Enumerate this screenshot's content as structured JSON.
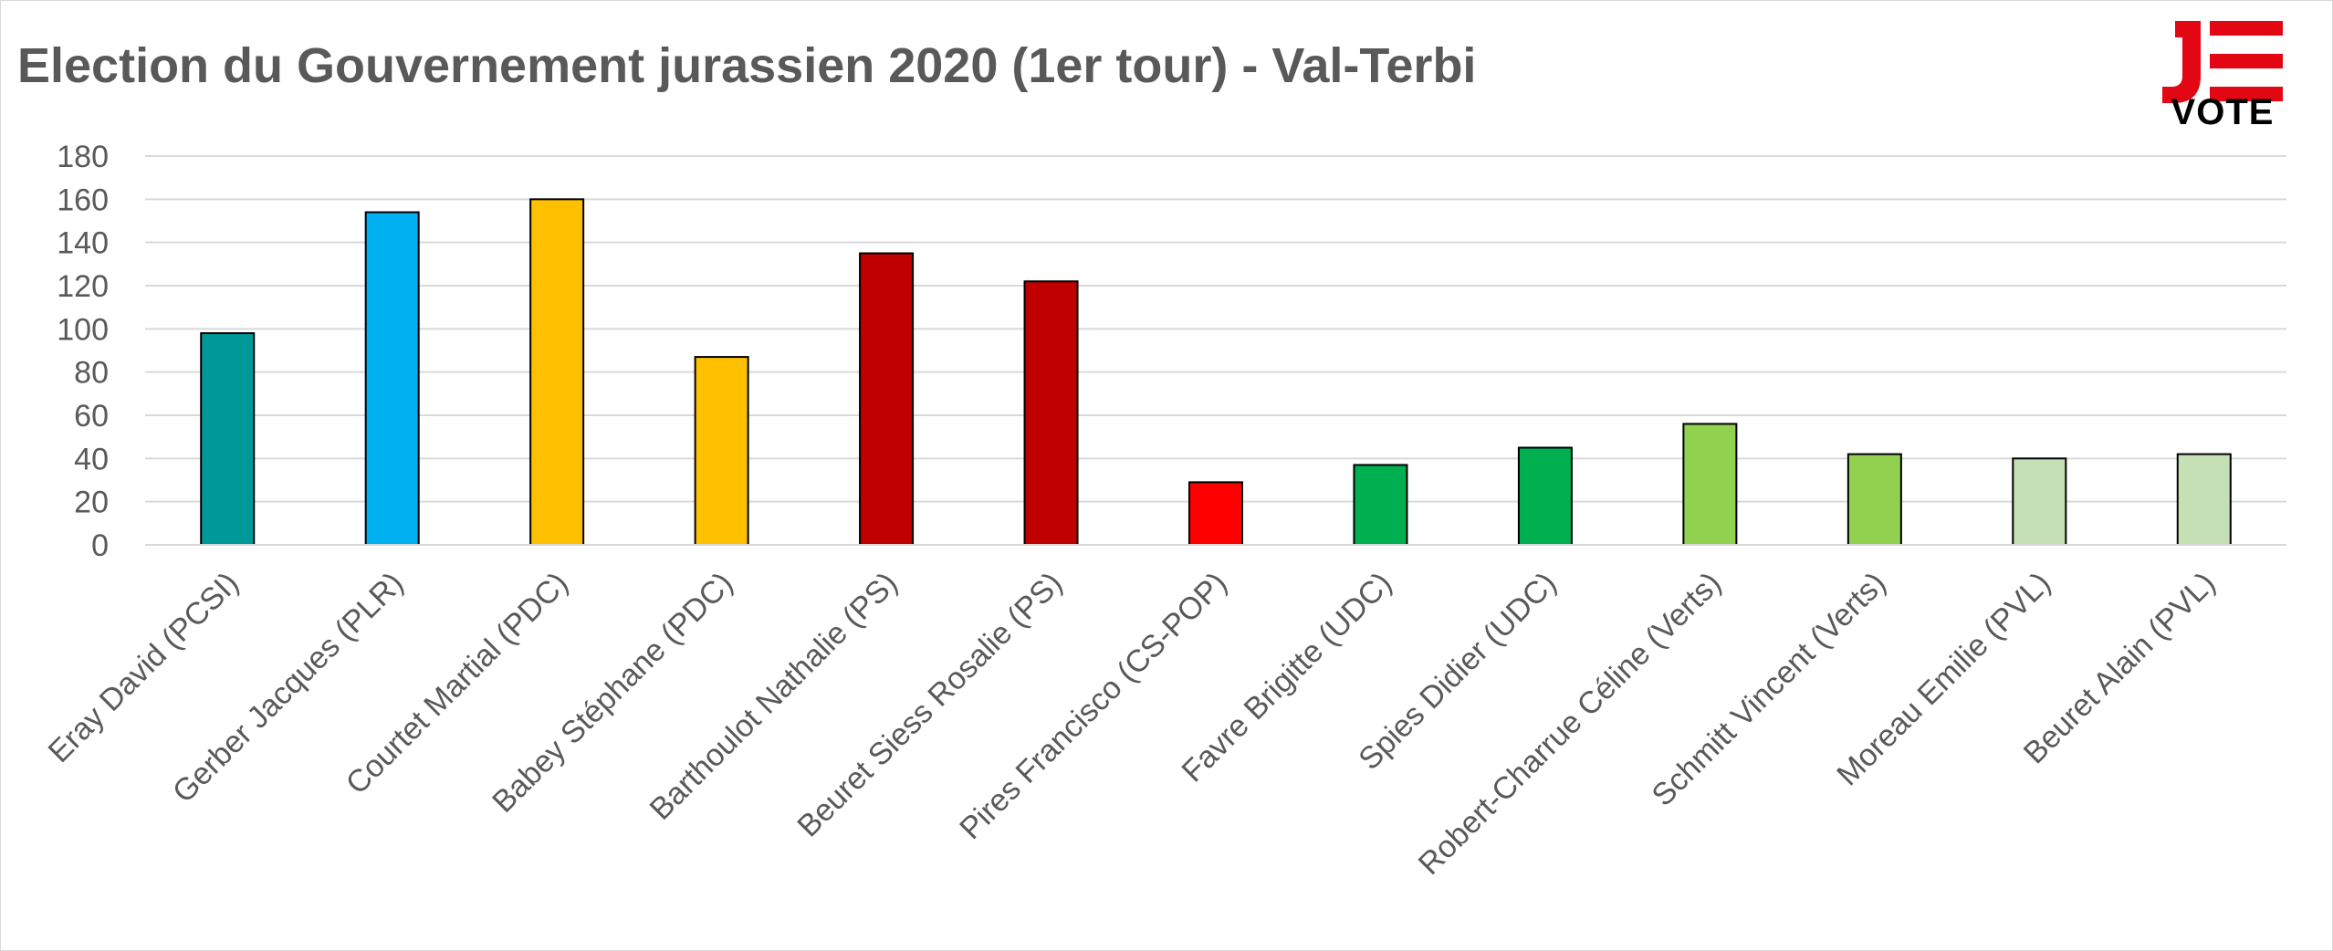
{
  "logo": {
    "text": "VOTE",
    "icon": "je-vote-logo-icon",
    "colors": {
      "accent": "#e30613",
      "text": "#000000"
    }
  },
  "chart_data": {
    "type": "bar",
    "title": "Election du Gouvernement jurassien 2020 (1er tour) - Val-Terbi",
    "xlabel": "",
    "ylabel": "",
    "ylim": [
      0,
      180
    ],
    "yticks": [
      0,
      20,
      40,
      60,
      80,
      100,
      120,
      140,
      160,
      180
    ],
    "grid": true,
    "legend": "none",
    "categories": [
      "Eray David (PCSI)",
      "Gerber Jacques (PLR)",
      "Courtet Martial (PDC)",
      "Babey Stéphane (PDC)",
      "Barthoulot Nathalie (PS)",
      "Beuret Siess Rosalie (PS)",
      "Pires Francisco (CS-POP)",
      "Favre Brigitte (UDC)",
      "Spies Didier (UDC)",
      "Robert-Charrue Céline (Verts)",
      "Schmitt Vincent (Verts)",
      "Moreau Emilie (PVL)",
      "Beuret Alain (PVL)"
    ],
    "values": [
      98,
      154,
      160,
      87,
      135,
      122,
      29,
      37,
      45,
      56,
      42,
      40,
      42
    ],
    "colors": [
      "#009999",
      "#00b0f0",
      "#ffc000",
      "#ffc000",
      "#c00000",
      "#c00000",
      "#ff0000",
      "#00b050",
      "#00b050",
      "#92d050",
      "#92d050",
      "#c5e0b4",
      "#c5e0b4"
    ]
  }
}
